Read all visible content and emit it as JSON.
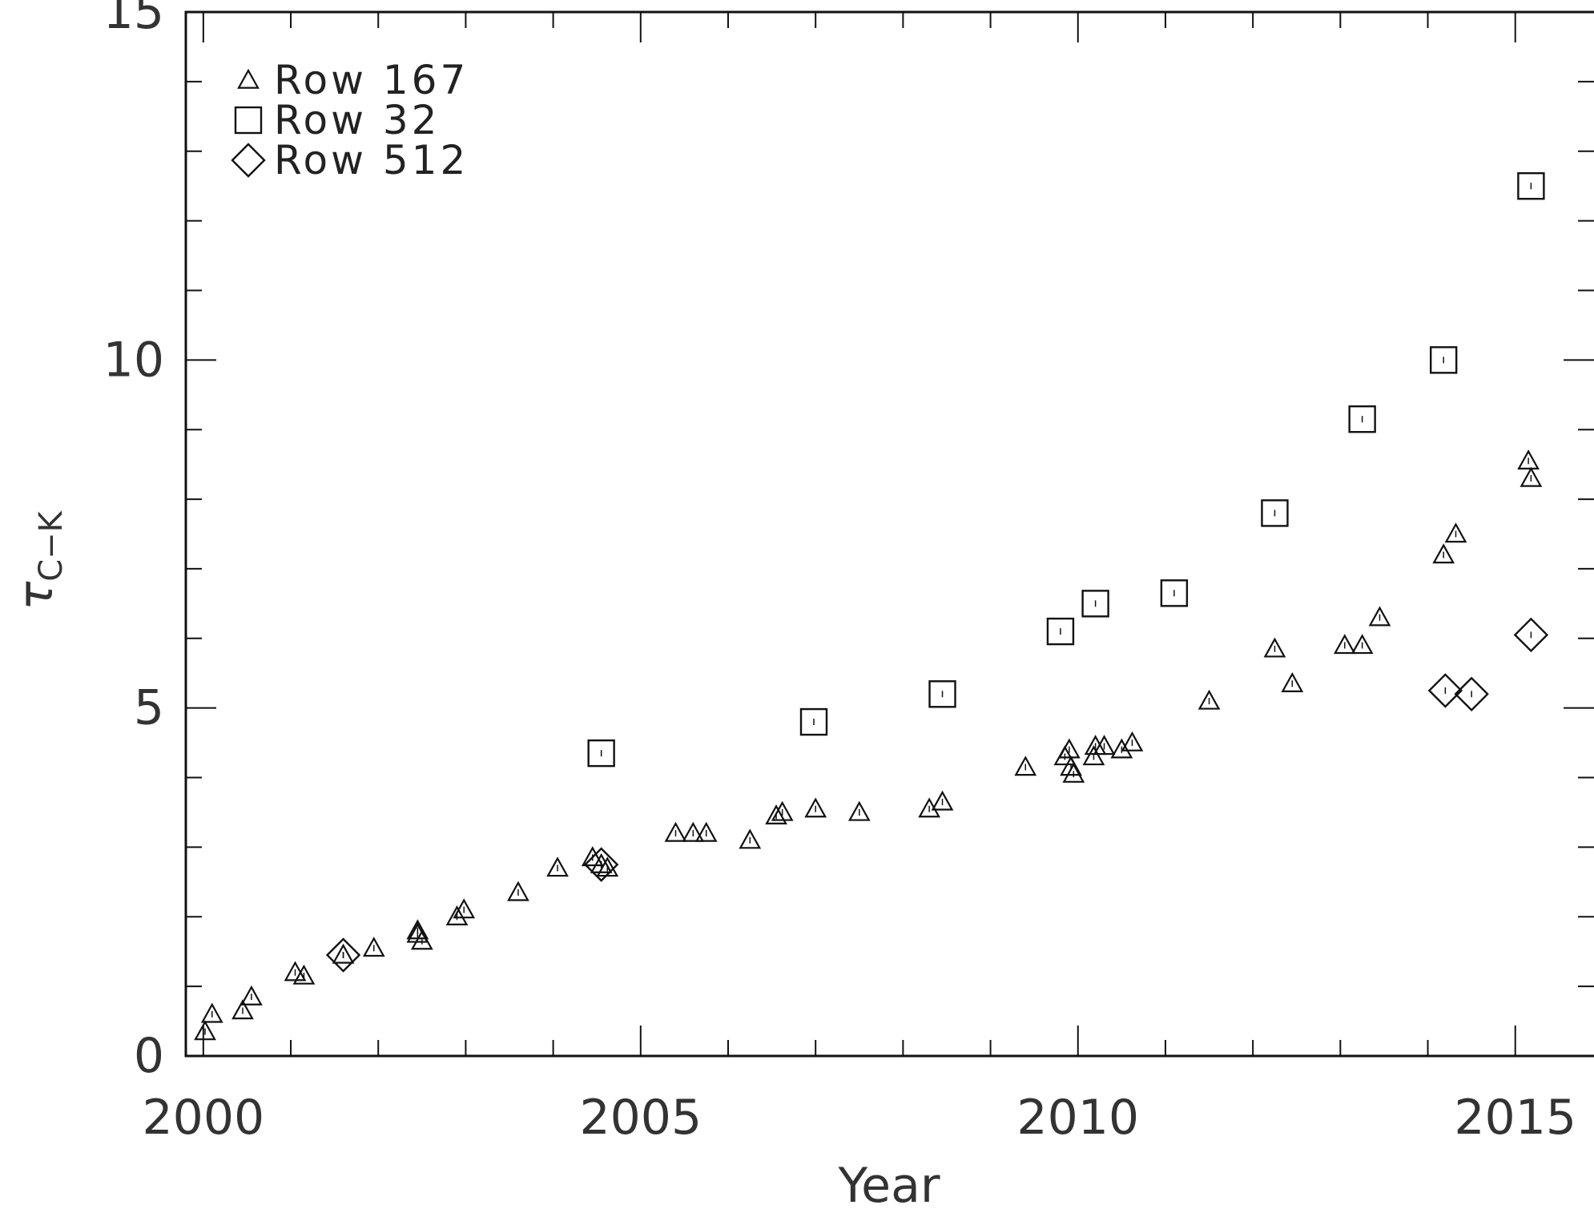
{
  "chart_data": {
    "type": "scatter",
    "title": "",
    "xlabel": "Year",
    "ylabel": "τ",
    "ylabel_subscript": "C−K",
    "xlim": [
      1999.8,
      2015.9
    ],
    "ylim": [
      0,
      15
    ],
    "x_ticks": [
      2000,
      2005,
      2010,
      2015
    ],
    "x_tick_labels": [
      "2000",
      "2005",
      "2010",
      "2015"
    ],
    "y_ticks": [
      0,
      5,
      10,
      15
    ],
    "y_tick_labels": [
      "0",
      "5",
      "10",
      "15"
    ],
    "x_minor_step": 1,
    "y_minor_step": 1,
    "grid": false,
    "legend_position": "top-left",
    "series": [
      {
        "name": "Row 167",
        "marker": "triangle",
        "points": [
          [
            2000.02,
            0.35
          ],
          [
            2000.1,
            0.6
          ],
          [
            2000.45,
            0.65
          ],
          [
            2000.55,
            0.85
          ],
          [
            2001.05,
            1.2
          ],
          [
            2001.15,
            1.15
          ],
          [
            2001.6,
            1.45
          ],
          [
            2001.95,
            1.55
          ],
          [
            2002.45,
            1.75
          ],
          [
            2002.45,
            1.8
          ],
          [
            2002.5,
            1.65
          ],
          [
            2002.9,
            2.0
          ],
          [
            2002.98,
            2.1
          ],
          [
            2003.6,
            2.35
          ],
          [
            2004.05,
            2.7
          ],
          [
            2004.45,
            2.85
          ],
          [
            2004.55,
            2.75
          ],
          [
            2004.62,
            2.7
          ],
          [
            2005.4,
            3.2
          ],
          [
            2005.6,
            3.2
          ],
          [
            2005.75,
            3.2
          ],
          [
            2006.25,
            3.1
          ],
          [
            2006.55,
            3.45
          ],
          [
            2006.62,
            3.5
          ],
          [
            2007.0,
            3.55
          ],
          [
            2007.5,
            3.5
          ],
          [
            2008.3,
            3.55
          ],
          [
            2008.45,
            3.65
          ],
          [
            2009.4,
            4.15
          ],
          [
            2009.85,
            4.3
          ],
          [
            2009.9,
            4.4
          ],
          [
            2009.92,
            4.15
          ],
          [
            2009.95,
            4.05
          ],
          [
            2010.18,
            4.3
          ],
          [
            2010.2,
            4.45
          ],
          [
            2010.3,
            4.45
          ],
          [
            2010.5,
            4.4
          ],
          [
            2010.62,
            4.5
          ],
          [
            2011.5,
            5.1
          ],
          [
            2012.25,
            5.85
          ],
          [
            2012.45,
            5.35
          ],
          [
            2013.05,
            5.9
          ],
          [
            2013.25,
            5.9
          ],
          [
            2013.45,
            6.3
          ],
          [
            2014.18,
            7.2
          ],
          [
            2014.32,
            7.5
          ],
          [
            2015.15,
            8.55
          ],
          [
            2015.18,
            8.3
          ]
        ]
      },
      {
        "name": "Row 32",
        "marker": "square",
        "points": [
          [
            2004.55,
            4.35
          ],
          [
            2006.98,
            4.8
          ],
          [
            2008.45,
            5.2
          ],
          [
            2009.8,
            6.1
          ],
          [
            2010.2,
            6.5
          ],
          [
            2011.1,
            6.65
          ],
          [
            2012.25,
            7.8
          ],
          [
            2013.25,
            9.15
          ],
          [
            2014.18,
            10.0
          ],
          [
            2015.18,
            12.5
          ]
        ]
      },
      {
        "name": "Row 512",
        "marker": "diamond",
        "points": [
          [
            2001.6,
            1.45
          ],
          [
            2004.55,
            2.75
          ],
          [
            2014.2,
            5.25
          ],
          [
            2014.5,
            5.2
          ],
          [
            2015.18,
            6.05
          ]
        ]
      }
    ],
    "legend": [
      "Row 167",
      "Row 32",
      "Row 512"
    ]
  }
}
